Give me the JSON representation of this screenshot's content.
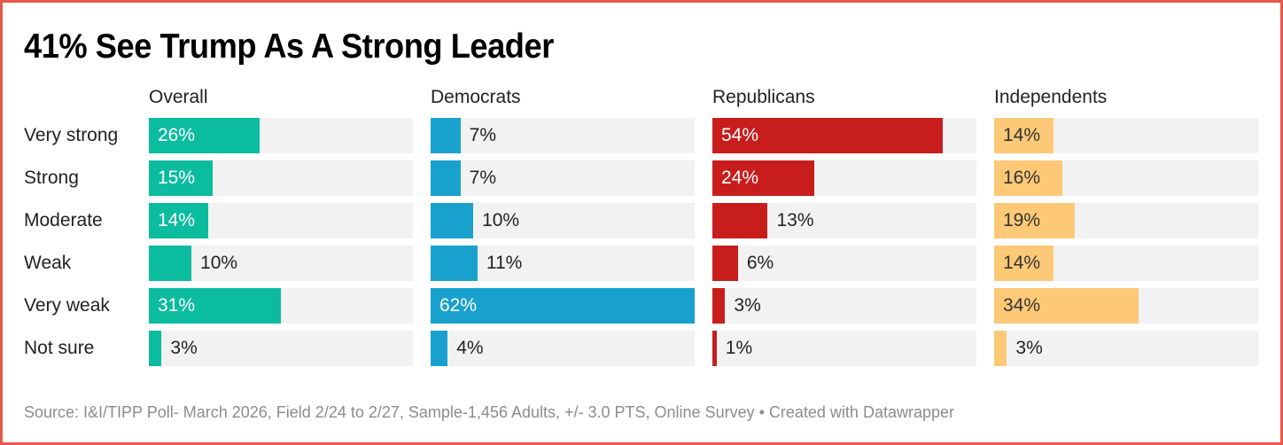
{
  "chart_data": {
    "type": "bar",
    "orientation": "horizontal",
    "layout": "small-multiples",
    "title": "41% See Trump As A Strong Leader",
    "categories": [
      "Very strong",
      "Strong",
      "Moderate",
      "Weak",
      "Very weak",
      "Not sure"
    ],
    "xlim": [
      0,
      62
    ],
    "unit": "%",
    "series": [
      {
        "name": "Overall",
        "color": "#0bbc9f",
        "label_inside_color": "#ffffff",
        "values": [
          26,
          15,
          14,
          10,
          31,
          3
        ]
      },
      {
        "name": "Democrats",
        "color": "#18a1cd",
        "label_inside_color": "#ffffff",
        "values": [
          7,
          7,
          10,
          11,
          62,
          4
        ]
      },
      {
        "name": "Republicans",
        "color": "#c71e1d",
        "label_inside_color": "#ffffff",
        "values": [
          54,
          24,
          13,
          6,
          3,
          1
        ]
      },
      {
        "name": "Independents",
        "color": "#fdc977",
        "label_inside_color": "#333333",
        "values": [
          14,
          16,
          19,
          14,
          34,
          3
        ]
      }
    ],
    "footer": "Source: I&I/TIPP Poll- March 2026, Field 2/24 to 2/27, Sample-1,456 Adults, +/- 3.0 PTS, Online Survey • Created with Datawrapper"
  }
}
